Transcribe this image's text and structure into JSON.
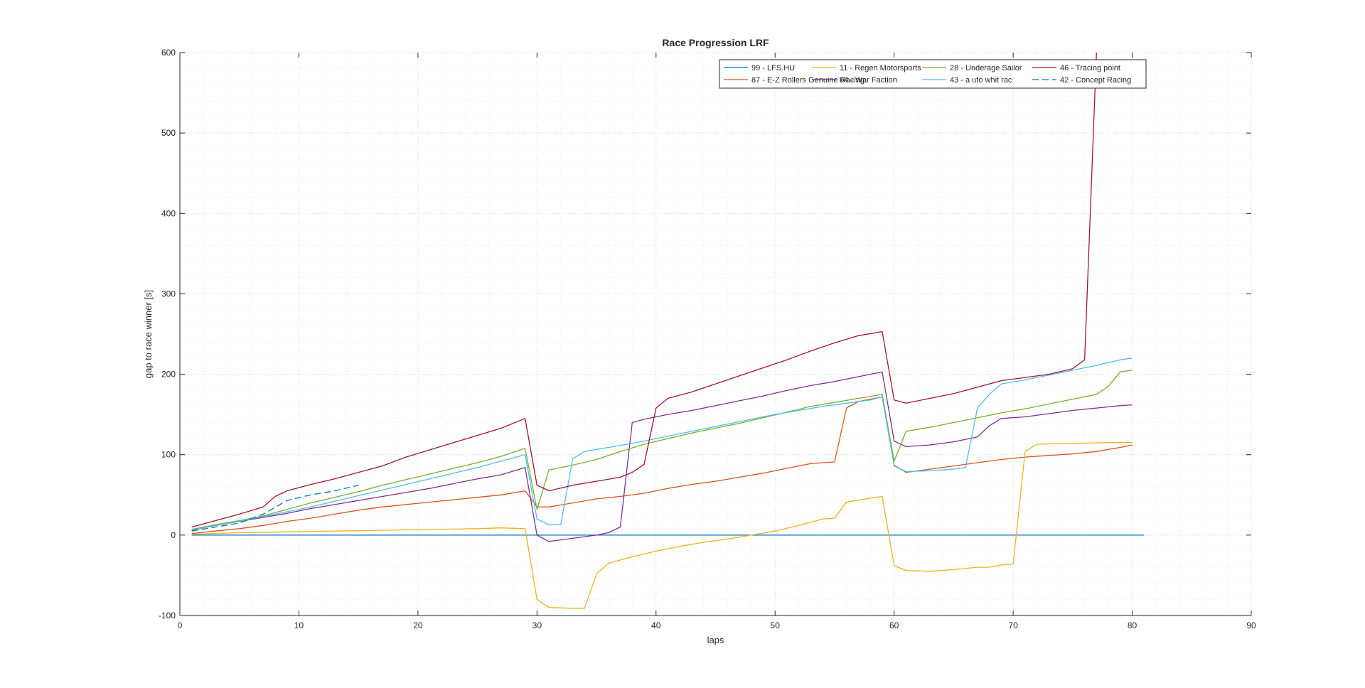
{
  "chart_data": {
    "type": "line",
    "title": "Race Progression LRF",
    "xlabel": "laps",
    "ylabel": "gap to race winner [s]",
    "xlim": [
      0,
      90
    ],
    "ylim": [
      -100,
      600
    ],
    "xticks": [
      0,
      10,
      20,
      30,
      40,
      50,
      60,
      70,
      80,
      90
    ],
    "yticks": [
      -100,
      0,
      100,
      200,
      300,
      400,
      500,
      600
    ],
    "grid": true,
    "minor_grid": true,
    "legend_position": "top-right",
    "series": [
      {
        "name": "99 - LFS.HU",
        "color": "#0072BD",
        "dash": "solid",
        "points": [
          [
            1,
            0
          ],
          [
            81,
            0
          ]
        ]
      },
      {
        "name": "87 - E-Z Rollers Genuine Racing",
        "color": "#D95319",
        "dash": "solid",
        "points": [
          [
            1,
            2
          ],
          [
            3,
            5
          ],
          [
            5,
            8
          ],
          [
            7,
            12
          ],
          [
            9,
            17
          ],
          [
            11,
            21
          ],
          [
            13,
            26
          ],
          [
            15,
            31
          ],
          [
            17,
            35
          ],
          [
            19,
            38
          ],
          [
            21,
            41
          ],
          [
            23,
            44
          ],
          [
            25,
            47
          ],
          [
            27,
            50
          ],
          [
            29,
            55
          ],
          [
            30,
            35
          ],
          [
            31,
            35
          ],
          [
            33,
            40
          ],
          [
            35,
            45
          ],
          [
            37,
            48
          ],
          [
            39,
            52
          ],
          [
            41,
            58
          ],
          [
            43,
            63
          ],
          [
            45,
            67
          ],
          [
            47,
            72
          ],
          [
            49,
            77
          ],
          [
            51,
            83
          ],
          [
            53,
            89
          ],
          [
            55,
            91
          ],
          [
            56,
            158
          ],
          [
            57,
            166
          ],
          [
            59,
            172
          ],
          [
            60,
            87
          ],
          [
            61,
            78
          ],
          [
            63,
            82
          ],
          [
            65,
            86
          ],
          [
            67,
            90
          ],
          [
            69,
            94
          ],
          [
            71,
            97
          ],
          [
            73,
            99
          ],
          [
            75,
            101
          ],
          [
            77,
            104
          ],
          [
            79,
            109
          ],
          [
            80,
            112
          ]
        ]
      },
      {
        "name": "11 - Regen Motorsports",
        "color": "#EDB120",
        "dash": "solid",
        "points": [
          [
            1,
            1
          ],
          [
            5,
            3
          ],
          [
            9,
            4
          ],
          [
            13,
            5
          ],
          [
            17,
            6
          ],
          [
            21,
            7
          ],
          [
            25,
            8
          ],
          [
            27,
            9
          ],
          [
            29,
            8
          ],
          [
            30,
            -80
          ],
          [
            31,
            -90
          ],
          [
            33,
            -91
          ],
          [
            34,
            -91
          ],
          [
            35,
            -48
          ],
          [
            36,
            -35
          ],
          [
            38,
            -27
          ],
          [
            40,
            -20
          ],
          [
            42,
            -14
          ],
          [
            44,
            -9
          ],
          [
            46,
            -5
          ],
          [
            48,
            0
          ],
          [
            50,
            5
          ],
          [
            52,
            12
          ],
          [
            54,
            20
          ],
          [
            55,
            21
          ],
          [
            56,
            41
          ],
          [
            58,
            46
          ],
          [
            59,
            48
          ],
          [
            60,
            -38
          ],
          [
            61,
            -44
          ],
          [
            63,
            -45
          ],
          [
            65,
            -43
          ],
          [
            67,
            -40
          ],
          [
            68,
            -40
          ],
          [
            69,
            -37
          ],
          [
            70,
            -36
          ],
          [
            71,
            104
          ],
          [
            72,
            113
          ],
          [
            75,
            114
          ],
          [
            78,
            115
          ],
          [
            80,
            115
          ]
        ]
      },
      {
        "name": "04 - War Faction",
        "color": "#7E2F8E",
        "dash": "solid",
        "points": [
          [
            1,
            6
          ],
          [
            3,
            12
          ],
          [
            5,
            17
          ],
          [
            7,
            22
          ],
          [
            9,
            27
          ],
          [
            11,
            33
          ],
          [
            13,
            38
          ],
          [
            15,
            43
          ],
          [
            17,
            48
          ],
          [
            19,
            53
          ],
          [
            21,
            58
          ],
          [
            23,
            64
          ],
          [
            25,
            70
          ],
          [
            27,
            75
          ],
          [
            29,
            84
          ],
          [
            30,
            0
          ],
          [
            31,
            -8
          ],
          [
            33,
            -4
          ],
          [
            35,
            0
          ],
          [
            36,
            3
          ],
          [
            37,
            10
          ],
          [
            38,
            140
          ],
          [
            39,
            144
          ],
          [
            41,
            150
          ],
          [
            43,
            155
          ],
          [
            45,
            161
          ],
          [
            47,
            167
          ],
          [
            49,
            173
          ],
          [
            51,
            180
          ],
          [
            53,
            186
          ],
          [
            55,
            191
          ],
          [
            57,
            197
          ],
          [
            59,
            203
          ],
          [
            60,
            117
          ],
          [
            61,
            110
          ],
          [
            63,
            112
          ],
          [
            65,
            116
          ],
          [
            67,
            122
          ],
          [
            68,
            136
          ],
          [
            69,
            145
          ],
          [
            71,
            147
          ],
          [
            73,
            151
          ],
          [
            75,
            155
          ],
          [
            77,
            158
          ],
          [
            79,
            161
          ],
          [
            80,
            162
          ]
        ]
      },
      {
        "name": "28 - Underage Sailor",
        "color": "#77AC30",
        "dash": "solid",
        "points": [
          [
            1,
            7
          ],
          [
            3,
            13
          ],
          [
            5,
            18
          ],
          [
            7,
            24
          ],
          [
            9,
            32
          ],
          [
            11,
            40
          ],
          [
            13,
            47
          ],
          [
            15,
            54
          ],
          [
            17,
            62
          ],
          [
            19,
            69
          ],
          [
            21,
            76
          ],
          [
            23,
            83
          ],
          [
            25,
            90
          ],
          [
            27,
            98
          ],
          [
            29,
            108
          ],
          [
            30,
            32
          ],
          [
            31,
            81
          ],
          [
            33,
            87
          ],
          [
            35,
            94
          ],
          [
            37,
            104
          ],
          [
            39,
            113
          ],
          [
            41,
            120
          ],
          [
            43,
            127
          ],
          [
            45,
            133
          ],
          [
            47,
            139
          ],
          [
            49,
            146
          ],
          [
            51,
            153
          ],
          [
            53,
            160
          ],
          [
            55,
            165
          ],
          [
            57,
            170
          ],
          [
            59,
            175
          ],
          [
            60,
            92
          ],
          [
            61,
            129
          ],
          [
            63,
            134
          ],
          [
            65,
            140
          ],
          [
            67,
            146
          ],
          [
            69,
            152
          ],
          [
            71,
            157
          ],
          [
            73,
            163
          ],
          [
            75,
            169
          ],
          [
            77,
            175
          ],
          [
            78,
            185
          ],
          [
            79,
            203
          ],
          [
            80,
            205
          ]
        ]
      },
      {
        "name": "43 - a ufo whit rac",
        "color": "#4DBEEE",
        "dash": "solid",
        "points": [
          [
            1,
            6
          ],
          [
            3,
            12
          ],
          [
            5,
            17
          ],
          [
            7,
            23
          ],
          [
            9,
            29
          ],
          [
            11,
            35
          ],
          [
            13,
            42
          ],
          [
            15,
            49
          ],
          [
            17,
            56
          ],
          [
            19,
            63
          ],
          [
            21,
            70
          ],
          [
            23,
            77
          ],
          [
            25,
            84
          ],
          [
            27,
            92
          ],
          [
            29,
            100
          ],
          [
            30,
            20
          ],
          [
            31,
            13
          ],
          [
            32,
            13
          ],
          [
            33,
            95
          ],
          [
            34,
            104
          ],
          [
            36,
            109
          ],
          [
            38,
            114
          ],
          [
            40,
            120
          ],
          [
            42,
            126
          ],
          [
            44,
            132
          ],
          [
            46,
            138
          ],
          [
            48,
            144
          ],
          [
            50,
            150
          ],
          [
            52,
            155
          ],
          [
            54,
            160
          ],
          [
            56,
            164
          ],
          [
            58,
            168
          ],
          [
            59,
            172
          ],
          [
            60,
            86
          ],
          [
            61,
            79
          ],
          [
            63,
            80
          ],
          [
            65,
            82
          ],
          [
            66,
            84
          ],
          [
            67,
            158
          ],
          [
            68,
            175
          ],
          [
            69,
            188
          ],
          [
            71,
            193
          ],
          [
            73,
            199
          ],
          [
            75,
            205
          ],
          [
            77,
            211
          ],
          [
            79,
            218
          ],
          [
            80,
            220
          ]
        ]
      },
      {
        "name": "46 - Tracing point",
        "color": "#A2142F",
        "dash": "solid",
        "points": [
          [
            1,
            10
          ],
          [
            3,
            18
          ],
          [
            5,
            26
          ],
          [
            7,
            35
          ],
          [
            8,
            48
          ],
          [
            9,
            55
          ],
          [
            11,
            63
          ],
          [
            13,
            70
          ],
          [
            15,
            78
          ],
          [
            17,
            86
          ],
          [
            19,
            97
          ],
          [
            21,
            106
          ],
          [
            23,
            115
          ],
          [
            25,
            124
          ],
          [
            27,
            133
          ],
          [
            29,
            145
          ],
          [
            30,
            62
          ],
          [
            31,
            55
          ],
          [
            33,
            62
          ],
          [
            35,
            67
          ],
          [
            37,
            72
          ],
          [
            38,
            78
          ],
          [
            39,
            88
          ],
          [
            40,
            158
          ],
          [
            41,
            170
          ],
          [
            43,
            178
          ],
          [
            45,
            188
          ],
          [
            47,
            198
          ],
          [
            49,
            208
          ],
          [
            51,
            218
          ],
          [
            53,
            229
          ],
          [
            55,
            239
          ],
          [
            57,
            248
          ],
          [
            59,
            253
          ],
          [
            60,
            168
          ],
          [
            61,
            164
          ],
          [
            63,
            170
          ],
          [
            65,
            176
          ],
          [
            67,
            184
          ],
          [
            69,
            192
          ],
          [
            71,
            196
          ],
          [
            73,
            200
          ],
          [
            75,
            207
          ],
          [
            76,
            218
          ],
          [
            77,
            600
          ]
        ]
      },
      {
        "name": "42 - Concept Racing",
        "color": "#0072BD",
        "dash": "dashed",
        "points": [
          [
            1,
            5
          ],
          [
            3,
            10
          ],
          [
            5,
            15
          ],
          [
            7,
            26
          ],
          [
            9,
            43
          ],
          [
            11,
            50
          ],
          [
            13,
            55
          ],
          [
            15,
            62
          ]
        ]
      }
    ]
  }
}
